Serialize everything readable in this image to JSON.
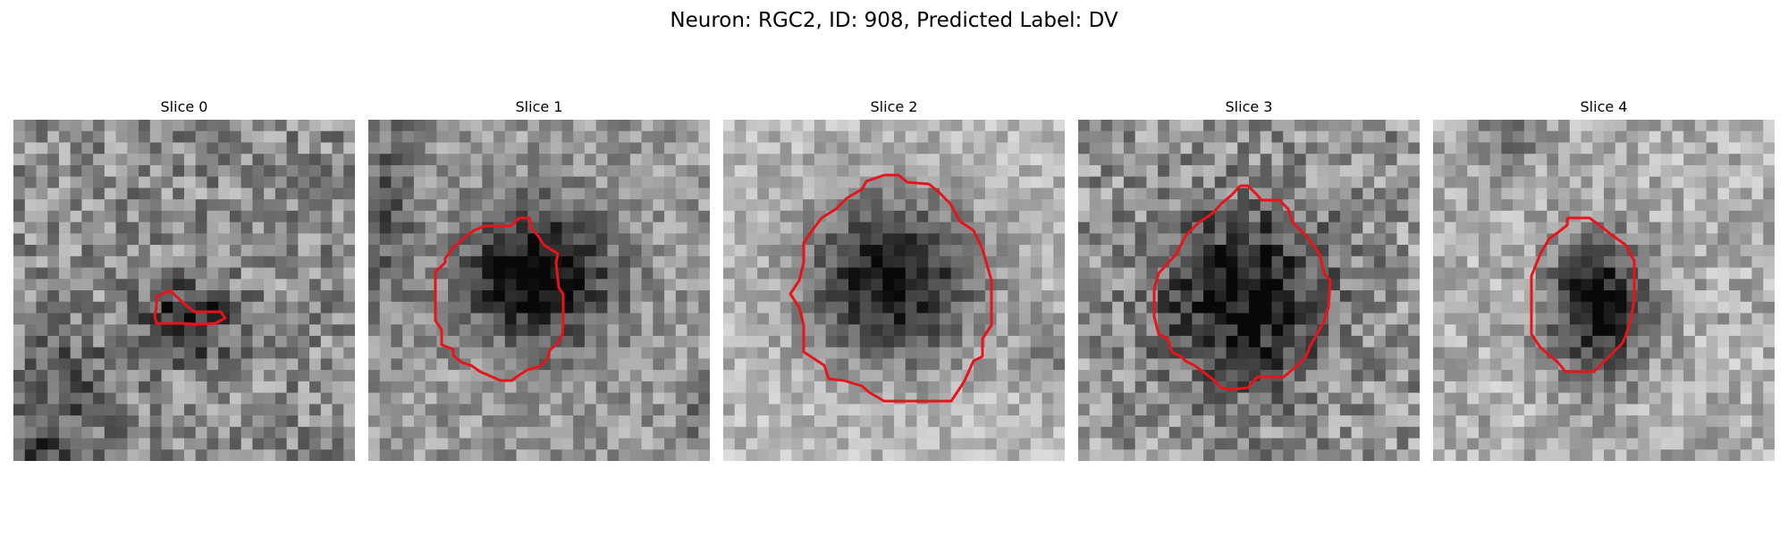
{
  "figure": {
    "title": "Neuron: RGC2, ID: 908, Predicted Label: DV"
  },
  "panels": [
    {
      "title": "Slice 0",
      "image": "grayscale-noise-slice-with-small-red-contour"
    },
    {
      "title": "Slice 1",
      "image": "grayscale-slice-dark-cell-with-red-contour"
    },
    {
      "title": "Slice 2",
      "image": "grayscale-slice-dark-cell-with-red-contour"
    },
    {
      "title": "Slice 3",
      "image": "grayscale-slice-dark-cell-with-red-contour"
    },
    {
      "title": "Slice 4",
      "image": "grayscale-slice-dark-cell-with-red-contour"
    }
  ],
  "colors": {
    "contour": "#e8141b",
    "background": "#ffffff"
  }
}
